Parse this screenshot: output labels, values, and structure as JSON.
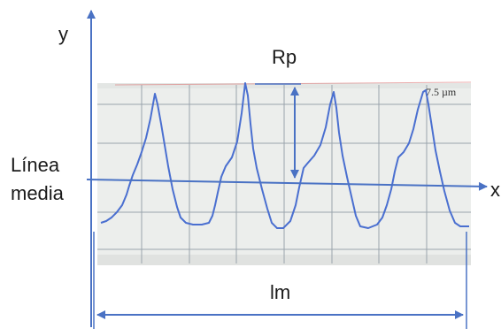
{
  "labels": {
    "y_axis": "y",
    "x_axis": "x",
    "rp": "Rp",
    "mean_line_line1": "Línea",
    "mean_line_line2": "media",
    "lm": "lm",
    "scale": "7.5 µm"
  },
  "colors": {
    "axis": "#4a72c4",
    "trace": "#4a6fd0",
    "grid": "#9aa4ac",
    "photo_bg": "#eceeec"
  }
}
